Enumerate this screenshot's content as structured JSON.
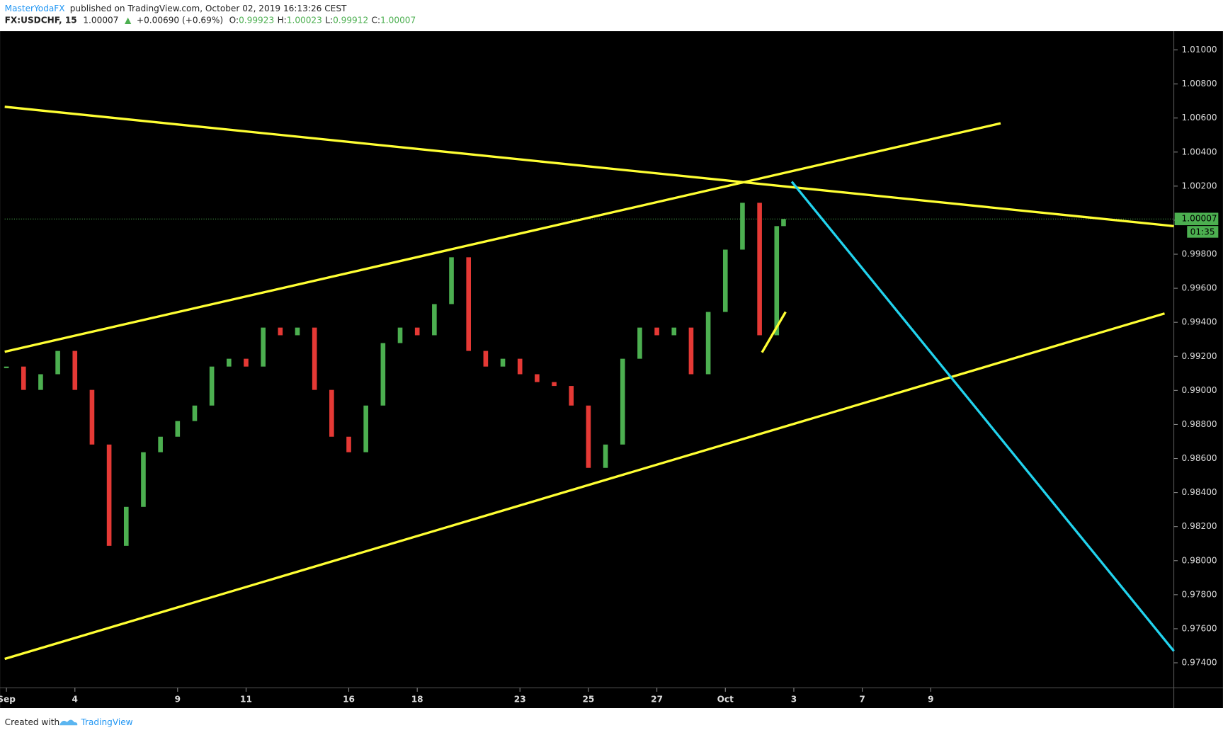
{
  "chart_data": {
    "type": "candlestick",
    "publisher": "MasterYodaFX",
    "published": "published on TradingView.com, October 02, 2019 16:13:26 CEST",
    "symbol": "FX:USDCHF, 15",
    "last": "1.00007",
    "change": "+0.00690 (+0.69%)",
    "ohlc": [
      {
        "label": "O:",
        "value": "0.99923"
      },
      {
        "label": "H:",
        "value": "1.00023"
      },
      {
        "label": "L:",
        "value": "0.99912"
      },
      {
        "label": "C:",
        "value": "1.00007"
      }
    ],
    "footer": "Created with",
    "brand": "TradingView",
    "up_color": "#4caf50",
    "down_color": "#e53935",
    "x": [
      0,
      0.5,
      1,
      1.5,
      2,
      2.5,
      3,
      3.5,
      4,
      4.5,
      5,
      5.5,
      6,
      6.5,
      7,
      7.5,
      8,
      8.5,
      9,
      9.5,
      10,
      10.5,
      11,
      11.5,
      12,
      12.5,
      13,
      13.5,
      14,
      14.5,
      15,
      15.5,
      16,
      16.5,
      17,
      17.5,
      18,
      18.5,
      19,
      19.5,
      20,
      20.5,
      21,
      21.5,
      22,
      22.5,
      22.7
    ],
    "values": [
      0.9914,
      0.99003,
      0.99095,
      0.99232,
      0.99003,
      0.98682,
      0.98087,
      0.98316,
      0.98637,
      0.98728,
      0.9882,
      0.98911,
      0.9914,
      0.99186,
      0.9914,
      0.99369,
      0.99324,
      0.99369,
      0.99003,
      0.98728,
      0.98637,
      0.98911,
      0.99278,
      0.99369,
      0.99324,
      0.99507,
      0.99782,
      0.99232,
      0.9914,
      0.99186,
      0.99095,
      0.99049,
      0.99026,
      0.98911,
      0.98545,
      0.98682,
      0.99186,
      0.99369,
      0.99324,
      0.99369,
      0.99095,
      0.99461,
      0.99827,
      1.00102,
      0.99324,
      0.99965,
      1.00007
    ],
    "last_price": 1.00007,
    "countdown": "01:35",
    "trendlines": [
      {
        "color": "#ffff33",
        "x": [
          -0.05,
          34.1
        ],
        "values": [
          1.00666,
          0.99965
        ]
      },
      {
        "color": "#ffff33",
        "x": [
          -0.05,
          29.04
        ],
        "values": [
          0.99227,
          1.00569
        ]
      },
      {
        "color": "#ffff33",
        "x": [
          -0.05,
          33.83
        ],
        "values": [
          0.97423,
          0.99452
        ]
      },
      {
        "color": "#ffff33",
        "x": [
          22.07,
          22.76
        ],
        "values": [
          0.99223,
          0.99461
        ]
      },
      {
        "color": "#22d3ee",
        "x": [
          22.94,
          34.1
        ],
        "values": [
          1.00226,
          0.97469
        ]
      }
    ],
    "xlim": [
      -0.05,
      34.1
    ],
    "ylim": [
      0.97253,
      1.0111
    ],
    "xticks": [
      {
        "value": 0,
        "label": "Sep"
      },
      {
        "value": 2,
        "label": "4"
      },
      {
        "value": 5,
        "label": "9"
      },
      {
        "value": 7,
        "label": "11"
      },
      {
        "value": 10,
        "label": "16"
      },
      {
        "value": 12,
        "label": "18"
      },
      {
        "value": 15,
        "label": "23"
      },
      {
        "value": 17,
        "label": "25"
      },
      {
        "value": 19,
        "label": "27"
      },
      {
        "value": 21,
        "label": "Oct"
      },
      {
        "value": 23,
        "label": "3"
      },
      {
        "value": 25,
        "label": "7"
      },
      {
        "value": 27,
        "label": "9"
      }
    ],
    "yticks": [
      {
        "value": 1.01,
        "label": "1.01000"
      },
      {
        "value": 1.008,
        "label": "1.00800"
      },
      {
        "value": 1.006,
        "label": "1.00600"
      },
      {
        "value": 1.004,
        "label": "1.00400"
      },
      {
        "value": 1.002,
        "label": "1.00200"
      },
      {
        "value": 1.0,
        "label": "1.00000"
      },
      {
        "value": 0.998,
        "label": "0.99800"
      },
      {
        "value": 0.996,
        "label": "0.99600"
      },
      {
        "value": 0.994,
        "label": "0.99400"
      },
      {
        "value": 0.992,
        "label": "0.99200"
      },
      {
        "value": 0.99,
        "label": "0.99000"
      },
      {
        "value": 0.988,
        "label": "0.98800"
      },
      {
        "value": 0.986,
        "label": "0.98600"
      },
      {
        "value": 0.984,
        "label": "0.98400"
      },
      {
        "value": 0.982,
        "label": "0.98200"
      },
      {
        "value": 0.98,
        "label": "0.98000"
      },
      {
        "value": 0.978,
        "label": "0.97800"
      },
      {
        "value": 0.976,
        "label": "0.97600"
      },
      {
        "value": 0.974,
        "label": "0.97400"
      }
    ]
  }
}
